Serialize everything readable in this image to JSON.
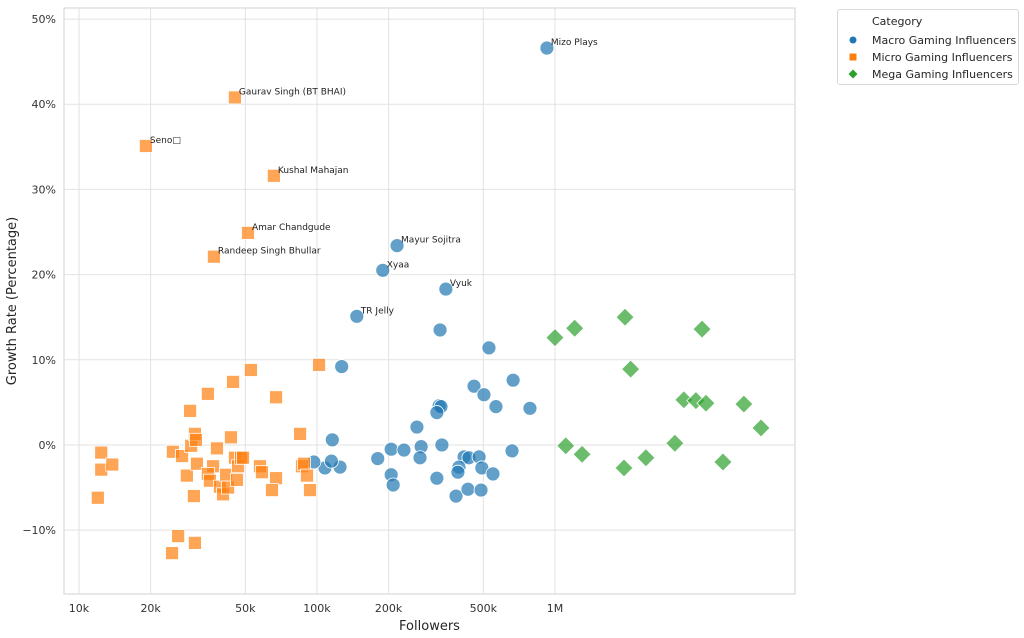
{
  "chart_data": {
    "type": "scatter",
    "xlabel": "Followers",
    "ylabel": "Growth Rate (Percentage)",
    "xscale": "log",
    "xlim": [
      8650,
      10200000
    ],
    "ylim": [
      -17.5,
      51.3
    ],
    "grid": true,
    "x_ticks": [
      {
        "v": 10000,
        "t": "10k"
      },
      {
        "v": 20000,
        "t": "20k"
      },
      {
        "v": 50000,
        "t": "50k"
      },
      {
        "v": 100000,
        "t": "100k"
      },
      {
        "v": 200000,
        "t": "200k"
      },
      {
        "v": 500000,
        "t": "500k"
      },
      {
        "v": 1000000,
        "t": "1M"
      }
    ],
    "y_ticks": [
      {
        "v": -10,
        "t": "−10%"
      },
      {
        "v": 0,
        "t": "0%"
      },
      {
        "v": 10,
        "t": "10%"
      },
      {
        "v": 20,
        "t": "20%"
      },
      {
        "v": 30,
        "t": "30%"
      },
      {
        "v": 40,
        "t": "40%"
      },
      {
        "v": 50,
        "t": "50%"
      }
    ],
    "legend": {
      "title": "Category",
      "placement": "outside-top-right"
    },
    "series": [
      {
        "name": "Macro Gaming Influencers",
        "marker": "circle",
        "color": "#1f77b4",
        "points": [
          {
            "x": 925000,
            "y": 46.6,
            "label": "Mizo Plays"
          },
          {
            "x": 217000,
            "y": 23.4,
            "label": "Mayur Sojitra"
          },
          {
            "x": 189000,
            "y": 20.5,
            "label": "Xyaa"
          },
          {
            "x": 348000,
            "y": 18.3,
            "label": "Vyuk"
          },
          {
            "x": 147000,
            "y": 15.1,
            "label": "TR Jelly"
          },
          {
            "x": 127000,
            "y": 9.2
          },
          {
            "x": 329000,
            "y": 13.5
          },
          {
            "x": 528000,
            "y": 11.4
          },
          {
            "x": 457000,
            "y": 6.9
          },
          {
            "x": 667000,
            "y": 7.6
          },
          {
            "x": 503000,
            "y": 5.9
          },
          {
            "x": 565000,
            "y": 4.5
          },
          {
            "x": 785000,
            "y": 4.3
          },
          {
            "x": 326000,
            "y": 4.6
          },
          {
            "x": 332000,
            "y": 4.5
          },
          {
            "x": 319000,
            "y": 3.8
          },
          {
            "x": 116000,
            "y": 0.6
          },
          {
            "x": 263000,
            "y": 2.1
          },
          {
            "x": 274000,
            "y": -0.2
          },
          {
            "x": 335000,
            "y": 0.0
          },
          {
            "x": 205000,
            "y": -0.5
          },
          {
            "x": 232000,
            "y": -0.6
          },
          {
            "x": 180000,
            "y": -1.6
          },
          {
            "x": 108000,
            "y": -2.7
          },
          {
            "x": 97000,
            "y": -2.0
          },
          {
            "x": 125000,
            "y": -2.6
          },
          {
            "x": 115000,
            "y": -1.9
          },
          {
            "x": 205000,
            "y": -3.5
          },
          {
            "x": 209000,
            "y": -4.7
          },
          {
            "x": 271000,
            "y": -1.5
          },
          {
            "x": 415000,
            "y": -1.4
          },
          {
            "x": 435000,
            "y": -1.5
          },
          {
            "x": 480000,
            "y": -1.4
          },
          {
            "x": 660000,
            "y": -0.7
          },
          {
            "x": 493000,
            "y": -2.7
          },
          {
            "x": 549000,
            "y": -3.4
          },
          {
            "x": 395000,
            "y": -2.6
          },
          {
            "x": 391000,
            "y": -3.2
          },
          {
            "x": 319000,
            "y": -3.9
          },
          {
            "x": 384000,
            "y": -6.0
          },
          {
            "x": 431000,
            "y": -5.2
          },
          {
            "x": 489000,
            "y": -5.3
          }
        ]
      },
      {
        "name": "Micro Gaming Influencers",
        "marker": "square",
        "color": "#ff7f0e",
        "points": [
          {
            "x": 45200,
            "y": 40.8,
            "label": "Gaurav Singh (BT BHAI)"
          },
          {
            "x": 19100,
            "y": 35.1,
            "label": "Seno□"
          },
          {
            "x": 65900,
            "y": 31.6,
            "label": "Kushal Mahajan"
          },
          {
            "x": 51300,
            "y": 24.9,
            "label": "Amar Chandgude"
          },
          {
            "x": 36900,
            "y": 22.1,
            "label": "Randeep Singh Bhullar"
          },
          {
            "x": 12000,
            "y": -6.2
          },
          {
            "x": 12400,
            "y": -0.9
          },
          {
            "x": 12400,
            "y": -2.9
          },
          {
            "x": 13800,
            "y": -2.3
          },
          {
            "x": 24800,
            "y": -0.8
          },
          {
            "x": 27100,
            "y": -1.3
          },
          {
            "x": 28400,
            "y": -3.6
          },
          {
            "x": 29600,
            "y": -0.1
          },
          {
            "x": 30700,
            "y": 1.3
          },
          {
            "x": 31000,
            "y": 0.6
          },
          {
            "x": 29300,
            "y": 4.0
          },
          {
            "x": 31300,
            "y": -2.2
          },
          {
            "x": 30400,
            "y": -6.0
          },
          {
            "x": 34800,
            "y": 6.0
          },
          {
            "x": 36600,
            "y": -2.5
          },
          {
            "x": 38000,
            "y": -0.4
          },
          {
            "x": 34800,
            "y": -3.4
          },
          {
            "x": 35500,
            "y": -4.2
          },
          {
            "x": 39100,
            "y": -4.9
          },
          {
            "x": 40300,
            "y": -5.8
          },
          {
            "x": 41500,
            "y": -3.5
          },
          {
            "x": 42300,
            "y": -5.0
          },
          {
            "x": 43500,
            "y": 0.9
          },
          {
            "x": 44400,
            "y": 7.4
          },
          {
            "x": 45200,
            "y": -1.5
          },
          {
            "x": 46100,
            "y": -4.1
          },
          {
            "x": 46600,
            "y": -2.5
          },
          {
            "x": 48000,
            "y": -1.5
          },
          {
            "x": 48900,
            "y": -1.5
          },
          {
            "x": 52800,
            "y": 8.8
          },
          {
            "x": 57600,
            "y": -2.5
          },
          {
            "x": 58700,
            "y": -3.2
          },
          {
            "x": 67300,
            "y": 5.6
          },
          {
            "x": 67300,
            "y": -3.9
          },
          {
            "x": 64700,
            "y": -5.3
          },
          {
            "x": 84900,
            "y": 1.3
          },
          {
            "x": 86500,
            "y": -2.5
          },
          {
            "x": 88100,
            "y": -2.2
          },
          {
            "x": 90800,
            "y": -3.6
          },
          {
            "x": 93500,
            "y": -5.3
          },
          {
            "x": 102000,
            "y": 9.4
          },
          {
            "x": 26100,
            "y": -10.7
          },
          {
            "x": 24600,
            "y": -12.7
          },
          {
            "x": 30700,
            "y": -11.5
          }
        ]
      },
      {
        "name": "Mega Gaming Influencers",
        "marker": "diamond",
        "color": "#2ca02c",
        "points": [
          {
            "x": 1000000,
            "y": 12.6
          },
          {
            "x": 1210000,
            "y": 13.7
          },
          {
            "x": 1970000,
            "y": 15.0
          },
          {
            "x": 2080000,
            "y": 8.9
          },
          {
            "x": 1110000,
            "y": -0.1
          },
          {
            "x": 1300000,
            "y": -1.1
          },
          {
            "x": 1950000,
            "y": -2.7
          },
          {
            "x": 2410000,
            "y": -1.5
          },
          {
            "x": 3190000,
            "y": 0.2
          },
          {
            "x": 3480000,
            "y": 5.3
          },
          {
            "x": 3910000,
            "y": 5.2
          },
          {
            "x": 4310000,
            "y": 4.9
          },
          {
            "x": 4150000,
            "y": 13.6
          },
          {
            "x": 5080000,
            "y": -2.0
          },
          {
            "x": 6220000,
            "y": 4.8
          },
          {
            "x": 7340000,
            "y": 2.0
          }
        ]
      }
    ]
  }
}
